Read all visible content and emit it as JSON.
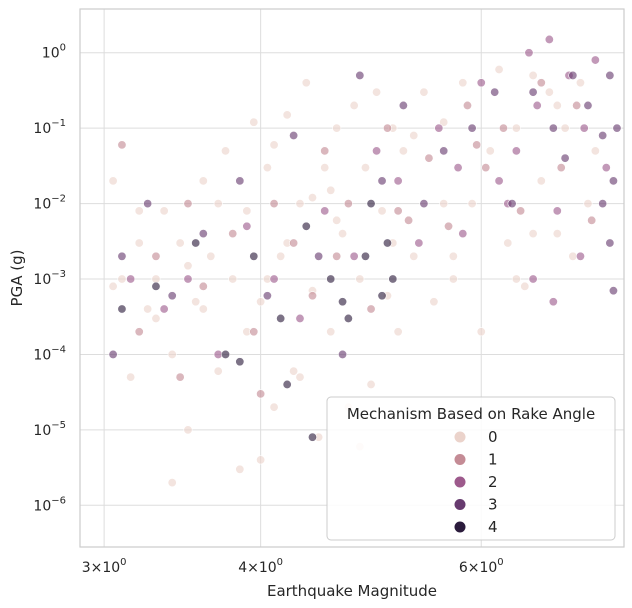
{
  "chart_data": {
    "type": "scatter",
    "title": "",
    "xlabel": "Earthquake Magnitude",
    "ylabel": "PGA (g)",
    "xscale": "log",
    "yscale": "log",
    "xlim": [
      2.87,
      7.8
    ],
    "ylim": [
      2.8e-07,
      3.8
    ],
    "grid": true,
    "x_ticks": [
      {
        "value": 3,
        "base": "3×10",
        "exp": "0"
      },
      {
        "value": 4,
        "base": "4×10",
        "exp": "0"
      },
      {
        "value": 6,
        "base": "6×10",
        "exp": "0"
      }
    ],
    "y_ticks": [
      {
        "value": 1e-06,
        "base": "10",
        "exp": "−6"
      },
      {
        "value": 1e-05,
        "base": "10",
        "exp": "−5"
      },
      {
        "value": 0.0001,
        "base": "10",
        "exp": "−4"
      },
      {
        "value": 0.001,
        "base": "10",
        "exp": "−3"
      },
      {
        "value": 0.01,
        "base": "10",
        "exp": "−2"
      },
      {
        "value": 0.1,
        "base": "10",
        "exp": "−1"
      },
      {
        "value": 1,
        "base": "10",
        "exp": "0"
      }
    ],
    "legend": {
      "title": "Mechanism Based on Rake Angle",
      "placement": "lower-right",
      "entries": [
        {
          "label": "0",
          "color": "#ebd3cb"
        },
        {
          "label": "1",
          "color": "#c48b95"
        },
        {
          "label": "2",
          "color": "#9d5a8c"
        },
        {
          "label": "3",
          "color": "#673b6f"
        },
        {
          "label": "4",
          "color": "#2b1b3c"
        }
      ]
    },
    "series": [
      {
        "name": "0",
        "color": "#ebd3cb",
        "points": [
          [
            3.05,
            0.0008
          ],
          [
            3.05,
            0.02
          ],
          [
            3.1,
            0.001
          ],
          [
            3.15,
            5e-05
          ],
          [
            3.2,
            0.003
          ],
          [
            3.25,
            0.0004
          ],
          [
            3.3,
            0.001
          ],
          [
            3.35,
            0.008
          ],
          [
            3.4,
            0.0001
          ],
          [
            3.45,
            0.003
          ],
          [
            3.5,
            1e-05
          ],
          [
            3.55,
            0.0005
          ],
          [
            3.6,
            0.02
          ],
          [
            3.65,
            0.002
          ],
          [
            3.7,
            6e-05
          ],
          [
            3.75,
            0.05
          ],
          [
            3.8,
            0.001
          ],
          [
            3.85,
            3e-06
          ],
          [
            3.9,
            0.008
          ],
          [
            3.95,
            0.12
          ],
          [
            4.0,
            0.0005
          ],
          [
            4.05,
            0.03
          ],
          [
            4.1,
            2e-05
          ],
          [
            4.15,
            0.002
          ],
          [
            4.2,
            0.15
          ],
          [
            4.25,
            6e-05
          ],
          [
            4.3,
            0.01
          ],
          [
            4.35,
            0.4
          ],
          [
            4.4,
            0.0007
          ],
          [
            4.45,
            8e-06
          ],
          [
            4.5,
            0.03
          ],
          [
            4.55,
            0.0002
          ],
          [
            4.6,
            0.1
          ],
          [
            4.65,
            0.004
          ],
          [
            4.7,
            2e-05
          ],
          [
            4.75,
            0.2
          ],
          [
            4.8,
            0.001
          ],
          [
            4.85,
            0.03
          ],
          [
            4.9,
            4e-05
          ],
          [
            4.95,
            0.3
          ],
          [
            5.0,
            0.008
          ],
          [
            5.05,
            0.0006
          ],
          [
            5.1,
            0.1
          ],
          [
            5.15,
            0.0002
          ],
          [
            5.2,
            0.05
          ],
          [
            5.3,
            0.002
          ],
          [
            5.4,
            0.3
          ],
          [
            5.5,
            0.0005
          ],
          [
            5.6,
            0.01
          ],
          [
            5.7,
            0.002
          ],
          [
            5.8,
            0.4
          ],
          [
            5.9,
            0.01
          ],
          [
            6.0,
            0.0002
          ],
          [
            6.1,
            0.05
          ],
          [
            6.2,
            0.6
          ],
          [
            6.3,
            0.003
          ],
          [
            6.4,
            0.1
          ],
          [
            6.5,
            0.0008
          ],
          [
            6.6,
            0.5
          ],
          [
            6.7,
            0.02
          ],
          [
            6.8,
            0.3
          ],
          [
            6.9,
            0.004
          ],
          [
            7.0,
            0.1
          ],
          [
            7.1,
            0.002
          ],
          [
            7.2,
            0.4
          ],
          [
            7.3,
            0.01
          ],
          [
            7.4,
            0.05
          ],
          [
            3.5,
            0.0015
          ],
          [
            3.6,
            0.0004
          ],
          [
            4.0,
            4e-06
          ],
          [
            4.2,
            0.003
          ],
          [
            4.4,
            0.012
          ],
          [
            3.3,
            0.0003
          ],
          [
            3.7,
            0.01
          ],
          [
            4.1,
            0.06
          ],
          [
            4.3,
            5e-05
          ],
          [
            4.6,
            0.006
          ],
          [
            5.1,
            0.003
          ],
          [
            5.6,
            0.12
          ],
          [
            3.2,
            0.008
          ],
          [
            3.9,
            0.0002
          ],
          [
            4.8,
            6e-06
          ],
          [
            5.3,
            0.08
          ],
          [
            6.4,
            0.001
          ],
          [
            6.9,
            0.2
          ],
          [
            3.4,
            2e-06
          ],
          [
            4.05,
            0.001
          ],
          [
            4.55,
            0.015
          ],
          [
            5.7,
            0.001
          ],
          [
            6.6,
            0.004
          ]
        ]
      },
      {
        "name": "1",
        "color": "#c48b95",
        "points": [
          [
            3.2,
            0.0002
          ],
          [
            3.3,
            0.002
          ],
          [
            3.45,
            5e-05
          ],
          [
            3.6,
            0.0008
          ],
          [
            3.8,
            0.004
          ],
          [
            3.95,
            0.0002
          ],
          [
            4.1,
            0.01
          ],
          [
            4.25,
            0.003
          ],
          [
            4.4,
            0.0006
          ],
          [
            4.5,
            0.05
          ],
          [
            4.7,
            0.01
          ],
          [
            4.9,
            0.0004
          ],
          [
            5.05,
            0.1
          ],
          [
            5.25,
            0.006
          ],
          [
            5.45,
            0.04
          ],
          [
            5.65,
            0.005
          ],
          [
            5.85,
            0.2
          ],
          [
            6.05,
            0.03
          ],
          [
            6.25,
            0.1
          ],
          [
            6.45,
            0.008
          ],
          [
            6.7,
            0.4
          ],
          [
            6.95,
            0.03
          ],
          [
            7.15,
            0.2
          ],
          [
            7.35,
            0.006
          ],
          [
            3.1,
            0.06
          ],
          [
            3.5,
            0.01
          ],
          [
            4.0,
            3e-05
          ],
          [
            4.6,
            0.002
          ],
          [
            5.15,
            0.008
          ],
          [
            5.95,
            0.06
          ]
        ]
      },
      {
        "name": "2",
        "color": "#9d5a8c",
        "points": [
          [
            3.15,
            0.001
          ],
          [
            3.35,
            0.0004
          ],
          [
            3.5,
            0.001
          ],
          [
            3.7,
            0.0001
          ],
          [
            3.9,
            0.005
          ],
          [
            4.1,
            0.001
          ],
          [
            4.3,
            0.0003
          ],
          [
            4.5,
            0.008
          ],
          [
            4.75,
            0.002
          ],
          [
            4.95,
            0.05
          ],
          [
            5.15,
            0.02
          ],
          [
            5.35,
            0.003
          ],
          [
            5.55,
            0.1
          ],
          [
            5.75,
            0.03
          ],
          [
            6.0,
            0.4
          ],
          [
            6.2,
            0.02
          ],
          [
            6.4,
            0.05
          ],
          [
            6.55,
            1
          ],
          [
            6.65,
            0.2
          ],
          [
            6.8,
            1.5
          ],
          [
            6.9,
            0.008
          ],
          [
            7.05,
            0.5
          ],
          [
            7.25,
            0.1
          ],
          [
            7.4,
            0.8
          ],
          [
            7.55,
            0.03
          ],
          [
            6.6,
            0.001
          ],
          [
            6.85,
            0.0005
          ],
          [
            7.2,
            0.002
          ],
          [
            5.8,
            0.004
          ],
          [
            6.3,
            0.01
          ]
        ]
      },
      {
        "name": "3",
        "color": "#673b6f",
        "points": [
          [
            3.05,
            0.0001
          ],
          [
            3.1,
            0.002
          ],
          [
            3.25,
            0.01
          ],
          [
            3.4,
            0.0006
          ],
          [
            3.6,
            0.004
          ],
          [
            3.85,
            0.02
          ],
          [
            4.05,
            0.0006
          ],
          [
            4.25,
            0.08
          ],
          [
            4.45,
            0.002
          ],
          [
            4.65,
            0.0001
          ],
          [
            4.8,
            0.5
          ],
          [
            5.0,
            0.02
          ],
          [
            5.2,
            0.2
          ],
          [
            5.4,
            0.01
          ],
          [
            5.6,
            0.05
          ],
          [
            5.9,
            0.1
          ],
          [
            6.15,
            0.3
          ],
          [
            6.35,
            0.01
          ],
          [
            6.6,
            0.3
          ],
          [
            6.85,
            0.1
          ],
          [
            7.0,
            0.04
          ],
          [
            7.1,
            0.5
          ],
          [
            7.3,
            0.2
          ],
          [
            7.5,
            0.08
          ],
          [
            7.6,
            0.5
          ],
          [
            7.65,
            0.02
          ],
          [
            7.7,
            0.1
          ],
          [
            7.6,
            0.003
          ],
          [
            7.65,
            0.0007
          ],
          [
            7.5,
            0.01
          ]
        ]
      },
      {
        "name": "4",
        "color": "#2b1b3c",
        "points": [
          [
            3.1,
            0.0004
          ],
          [
            3.3,
            0.0008
          ],
          [
            3.55,
            0.003
          ],
          [
            3.75,
            0.0001
          ],
          [
            3.95,
            0.002
          ],
          [
            4.15,
            0.0003
          ],
          [
            4.35,
            0.005
          ],
          [
            4.55,
            0.001
          ],
          [
            4.7,
            0.0003
          ],
          [
            4.85,
            0.002
          ],
          [
            5.0,
            0.0006
          ],
          [
            5.1,
            0.001
          ],
          [
            4.9,
            0.01
          ],
          [
            4.65,
            0.0005
          ],
          [
            4.2,
            4e-05
          ],
          [
            3.85,
            8e-05
          ],
          [
            4.4,
            8e-06
          ],
          [
            5.05,
            0.003
          ]
        ]
      }
    ]
  }
}
